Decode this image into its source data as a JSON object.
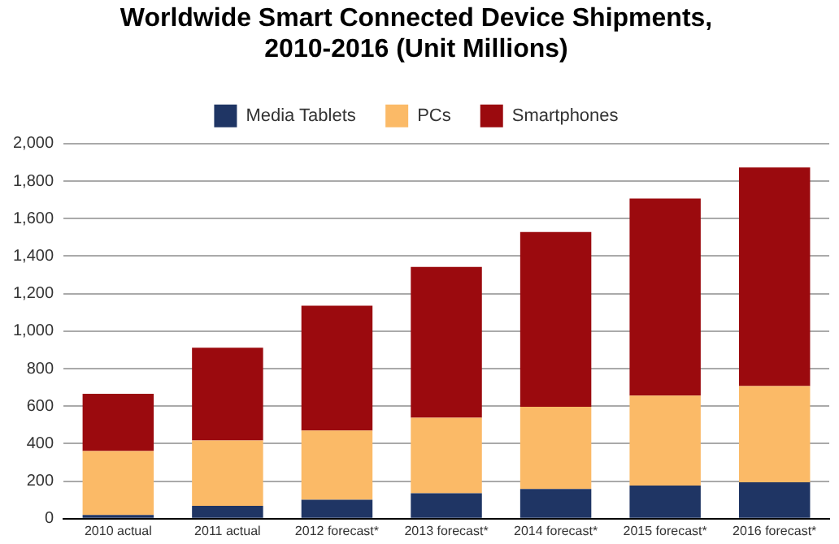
{
  "chart_data": {
    "type": "bar",
    "stacked": true,
    "title": "Worldwide Smart Connected Device Shipments,\n2010-2016 (Unit Millions)",
    "categories": [
      "2010 actual",
      "2011 actual",
      "2012 forecast*",
      "2013 forecast*",
      "2014 forecast*",
      "2015 forecast*",
      "2016 forecast*"
    ],
    "series": [
      {
        "name": "Media Tablets",
        "color": "#1f3564",
        "values": [
          20,
          68,
          101,
          135,
          158,
          177,
          194
        ]
      },
      {
        "name": "PCs",
        "color": "#fbba67",
        "values": [
          341,
          349,
          369,
          403,
          439,
          479,
          513
        ]
      },
      {
        "name": "Smartphones",
        "color": "#9b0a0e",
        "values": [
          305,
          495,
          665,
          804,
          931,
          1051,
          1165
        ]
      }
    ],
    "ylim": [
      0,
      2000
    ],
    "yticks": [
      {
        "value": 0,
        "label": "0"
      },
      {
        "value": 200,
        "label": "200"
      },
      {
        "value": 400,
        "label": "400"
      },
      {
        "value": 600,
        "label": "600"
      },
      {
        "value": 800,
        "label": "800"
      },
      {
        "value": 1000,
        "label": "1,000"
      },
      {
        "value": 1200,
        "label": "1,200"
      },
      {
        "value": 1400,
        "label": "1,400"
      },
      {
        "value": 1600,
        "label": "1,600"
      },
      {
        "value": 1800,
        "label": "1,800"
      },
      {
        "value": 2000,
        "label": "2,000"
      }
    ],
    "grid": "y",
    "legend": "top"
  }
}
